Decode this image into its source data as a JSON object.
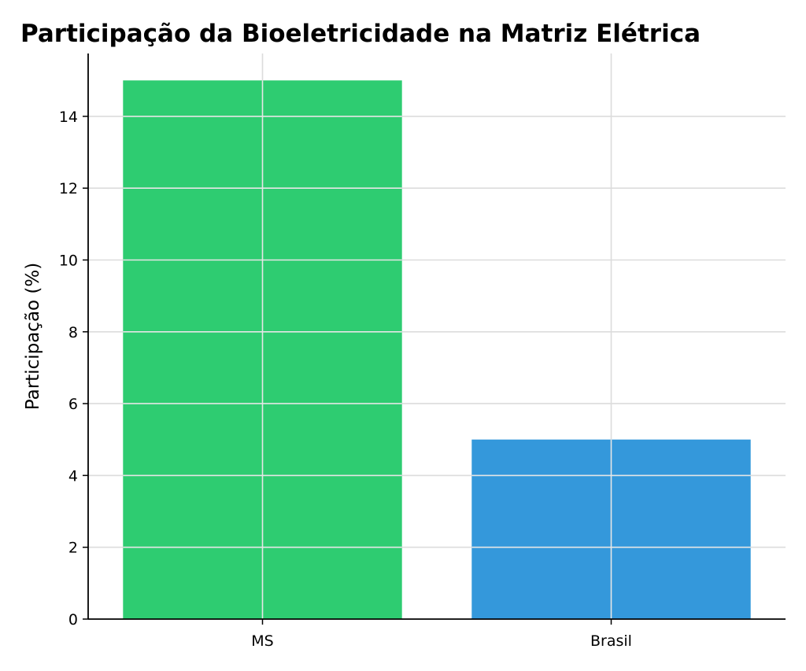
{
  "chart_data": {
    "type": "bar",
    "title": "Participação da Bioeletricidade na Matriz Elétrica",
    "xlabel": "",
    "ylabel": "Participação (%)",
    "categories": [
      "MS",
      "Brasil"
    ],
    "values": [
      15,
      5
    ],
    "colors": [
      "#2ecc71",
      "#3498db"
    ],
    "ylim": [
      0,
      15.75
    ],
    "yticks": [
      0,
      2,
      4,
      6,
      8,
      10,
      12,
      14
    ],
    "grid": true,
    "legend": "none"
  }
}
